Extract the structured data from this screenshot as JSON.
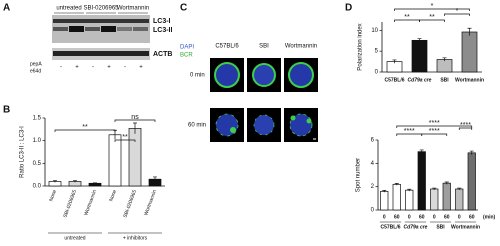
{
  "panel_letters": [
    "A",
    "B",
    "C",
    "D"
  ],
  "blot": {
    "lanes": [
      "untreated",
      "SBI-0206965",
      "Wortmannin"
    ],
    "bands": [
      "LC3-I",
      "LC3-II",
      "ACTB"
    ],
    "treatment_labels": [
      "pepA",
      "e64d"
    ],
    "signs": [
      "-",
      "+",
      "-",
      "+",
      "-",
      "+"
    ]
  },
  "microscopy": {
    "channels": [
      "DAPI",
      "BCR"
    ],
    "columns": [
      "C57BL/6",
      "SBI",
      "Wortmannin"
    ],
    "rows": [
      "0 min",
      "60 min"
    ]
  },
  "chart_data": [
    {
      "type": "bar",
      "y_label": "Ratio LC3-II : LC3-I",
      "categories": [
        "None",
        "SBI-0206965",
        "Wortmannin",
        "None",
        "SBI-0206965",
        "Wortmannin"
      ],
      "groups": [
        "untreated",
        "+ inhibitors"
      ],
      "values": [
        0.1,
        0.1,
        0.06,
        1.13,
        1.27,
        0.15
      ],
      "errors": [
        0.02,
        0.02,
        0.01,
        0.1,
        0.12,
        0.05
      ],
      "colors": [
        "#ffffff",
        "#d9d9d9",
        "#111111",
        "#ffffff",
        "#d9d9d9",
        "#111111"
      ],
      "ylim": [
        0,
        1.5
      ],
      "yticks": [
        {
          "value": 0,
          "label": "0.0"
        },
        {
          "value": 0.5,
          "label": "0.5"
        },
        {
          "value": 1,
          "label": "1.0"
        },
        {
          "value": 1.5,
          "label": "1.5"
        }
      ],
      "annotations": [
        "ns",
        "**",
        "**"
      ]
    },
    {
      "type": "bar",
      "y_label": "Polarization index",
      "categories": [
        "C57BL/6",
        "Cd79a cre",
        "SBI",
        "Wortmannin"
      ],
      "values": [
        2.5,
        7.6,
        3.0,
        9.6
      ],
      "errors": [
        0.4,
        0.4,
        0.4,
        0.9
      ],
      "colors": [
        "#ffffff",
        "#111111",
        "#bdbdbd",
        "#8c8c8c"
      ],
      "ylim": [
        0,
        12
      ],
      "yticks": [
        0,
        5,
        10
      ],
      "annotations": [
        "*",
        "**",
        "**",
        "*"
      ]
    },
    {
      "type": "bar",
      "y_label": "Spot number",
      "x_label": "(min)",
      "categories": [
        "0",
        "60",
        "0",
        "60",
        "0",
        "60",
        "0",
        "60"
      ],
      "groups": [
        "C57BL/6",
        "Cd79a cre",
        "SBI",
        "Wortmannin"
      ],
      "values": [
        1.6,
        2.2,
        1.7,
        5.0,
        1.8,
        2.3,
        1.8,
        4.9
      ],
      "errors": [
        0.08,
        0.08,
        0.08,
        0.15,
        0.08,
        0.1,
        0.08,
        0.15
      ],
      "colors": [
        "#ffffff",
        "#ffffff",
        "#ffffff",
        "#111111",
        "#d9d9d9",
        "#9e9e9e",
        "#bdbdbd",
        "#6e6e6e"
      ],
      "ylim": [
        0,
        6
      ],
      "yticks": [
        0,
        2,
        4,
        6
      ],
      "annotations": [
        "****",
        "****",
        "****",
        "****"
      ]
    }
  ]
}
